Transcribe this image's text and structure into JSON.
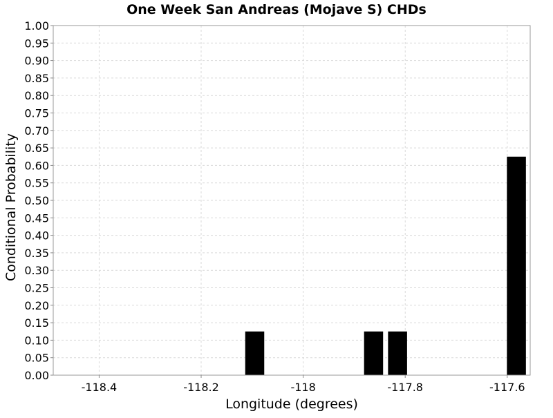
{
  "chart_data": {
    "type": "bar",
    "title": "One Week San Andreas (Mojave S) CHDs",
    "xlabel": "Longitude (degrees)",
    "ylabel": "Conditional Probability",
    "xlim": [
      -118.49,
      -117.555
    ],
    "ylim": [
      0,
      1
    ],
    "xticks": [
      -118.4,
      -118.2,
      -118,
      -117.8,
      -117.6
    ],
    "xtick_labels": [
      "-118.4",
      "-118.2",
      "-118",
      "-117.8",
      "-117.6"
    ],
    "yticks": [
      0,
      0.05,
      0.1,
      0.15,
      0.2,
      0.25,
      0.3,
      0.35,
      0.4,
      0.45,
      0.5,
      0.55,
      0.6,
      0.65,
      0.7,
      0.75,
      0.8,
      0.85,
      0.9,
      0.95,
      1
    ],
    "ytick_labels": [
      "0.00",
      "0.05",
      "0.10",
      "0.15",
      "0.20",
      "0.25",
      "0.30",
      "0.35",
      "0.40",
      "0.45",
      "0.50",
      "0.55",
      "0.60",
      "0.65",
      "0.70",
      "0.75",
      "0.80",
      "0.85",
      "0.90",
      "0.95",
      "1.00"
    ],
    "bin_width": 0.04,
    "x": [
      -118.095,
      -117.862,
      -117.815,
      -117.582
    ],
    "values": [
      0.125,
      0.125,
      0.125,
      0.625
    ],
    "bar_color": "#000000",
    "grid": true,
    "grid_color": "#d9d9d9"
  }
}
